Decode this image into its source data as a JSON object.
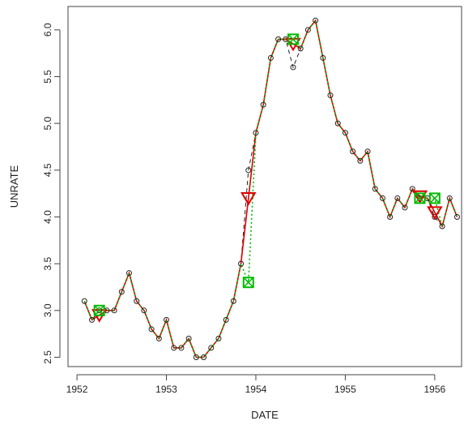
{
  "chart_data": {
    "type": "line",
    "xlabel": "DATE",
    "ylabel": "UNRATE",
    "xlim": [
      1951.9,
      1956.3
    ],
    "ylim": [
      2.4,
      6.25
    ],
    "x_ticks": [
      1952,
      1953,
      1954,
      1955,
      1956
    ],
    "y_ticks": [
      2.5,
      3.0,
      3.5,
      4.0,
      4.5,
      5.0,
      5.5,
      6.0
    ],
    "x_tick_labels": [
      "1952",
      "1953",
      "1954",
      "1955",
      "1956"
    ],
    "y_tick_labels": [
      "2.5",
      "3.0",
      "3.5",
      "4.0",
      "4.5",
      "5.0",
      "5.5",
      "6.0"
    ],
    "grid": false,
    "colors": {
      "observed": "#222222",
      "series_red": "#dd0000",
      "series_green": "#00bb00",
      "series_brown": "#8b5a2b"
    },
    "observed": {
      "x": [
        1952.0833,
        1952.1667,
        1952.25,
        1952.3333,
        1952.4167,
        1952.5,
        1952.5833,
        1952.6667,
        1952.75,
        1952.8333,
        1952.9167,
        1953.0,
        1953.0833,
        1953.1667,
        1953.25,
        1953.3333,
        1953.4167,
        1953.5,
        1953.5833,
        1953.6667,
        1953.75,
        1953.8333,
        1953.9167,
        1954.0,
        1954.0833,
        1954.1667,
        1954.25,
        1954.3333,
        1954.4167,
        1954.5,
        1954.5833,
        1954.6667,
        1954.75,
        1954.8333,
        1954.9167,
        1955.0,
        1955.0833,
        1955.1667,
        1955.25,
        1955.3333,
        1955.4167,
        1955.5,
        1955.5833,
        1955.6667,
        1955.75,
        1955.8333,
        1955.9167,
        1956.0,
        1956.0833,
        1956.1667,
        1956.25
      ],
      "y": [
        3.1,
        2.9,
        3.0,
        3.0,
        3.0,
        3.2,
        3.4,
        3.1,
        3.0,
        2.8,
        2.7,
        2.9,
        2.6,
        2.6,
        2.7,
        2.5,
        2.5,
        2.6,
        2.7,
        2.9,
        3.1,
        3.5,
        4.5,
        4.9,
        5.2,
        5.7,
        5.9,
        5.9,
        5.6,
        5.8,
        6.0,
        6.1,
        5.7,
        5.3,
        5.0,
        4.9,
        4.7,
        4.6,
        4.7,
        4.3,
        4.2,
        4.0,
        4.2,
        4.1,
        4.3,
        4.2,
        4.2,
        4.0,
        3.9,
        4.2,
        4.0
      ]
    },
    "series": [
      {
        "color": "#dd0000",
        "marker": "triangle-down",
        "dash": "solid",
        "x": [
          1952.0833,
          1952.1667,
          1952.25,
          1952.3333,
          1952.4167,
          1952.5,
          1952.5833,
          1952.6667,
          1952.75,
          1952.8333,
          1952.9167,
          1953.0,
          1953.0833,
          1953.1667,
          1953.25,
          1953.3333,
          1953.4167,
          1953.5,
          1953.5833,
          1953.6667,
          1953.75,
          1953.8333,
          1953.9167,
          1954.0,
          1954.0833,
          1954.1667,
          1954.25,
          1954.3333,
          1954.4167,
          1954.5,
          1954.5833,
          1954.6667,
          1954.75,
          1954.8333,
          1954.9167,
          1955.0,
          1955.0833,
          1955.1667,
          1955.25,
          1955.3333,
          1955.4167,
          1955.5,
          1955.5833,
          1955.6667,
          1955.75,
          1955.8333,
          1955.9167,
          1956.0,
          1956.0833,
          1956.1667,
          1956.25
        ],
        "y": [
          3.1,
          2.9,
          2.95,
          3.0,
          3.0,
          3.2,
          3.4,
          3.1,
          3.0,
          2.8,
          2.7,
          2.9,
          2.6,
          2.6,
          2.7,
          2.5,
          2.5,
          2.6,
          2.7,
          2.9,
          3.1,
          3.5,
          4.2,
          4.9,
          5.2,
          5.7,
          5.9,
          5.9,
          5.85,
          5.8,
          6.0,
          6.1,
          5.7,
          5.3,
          5.0,
          4.9,
          4.7,
          4.6,
          4.7,
          4.3,
          4.2,
          4.0,
          4.2,
          4.1,
          4.3,
          4.22,
          4.2,
          4.05,
          3.9,
          4.2,
          4.0
        ],
        "marked_points": [
          [
            1952.25,
            2.95
          ],
          [
            1953.9167,
            4.2
          ],
          [
            1954.4167,
            5.85
          ],
          [
            1955.8333,
            4.22
          ],
          [
            1956.0,
            4.05
          ]
        ]
      },
      {
        "color": "#00bb00",
        "marker": "boxed-x",
        "dash": "dotted",
        "x": [
          1952.0833,
          1952.1667,
          1952.25,
          1952.3333,
          1952.4167,
          1952.5,
          1952.5833,
          1952.6667,
          1952.75,
          1952.8333,
          1952.9167,
          1953.0,
          1953.0833,
          1953.1667,
          1953.25,
          1953.3333,
          1953.4167,
          1953.5,
          1953.5833,
          1953.6667,
          1953.75,
          1953.8333,
          1953.9167,
          1954.0,
          1954.0833,
          1954.1667,
          1954.25,
          1954.3333,
          1954.4167,
          1954.5,
          1954.5833,
          1954.6667,
          1954.75,
          1954.8333,
          1954.9167,
          1955.0,
          1955.0833,
          1955.1667,
          1955.25,
          1955.3333,
          1955.4167,
          1955.5,
          1955.5833,
          1955.6667,
          1955.75,
          1955.8333,
          1955.9167,
          1956.0,
          1956.0833,
          1956.1667,
          1956.25
        ],
        "y": [
          3.1,
          2.9,
          3.0,
          3.0,
          3.0,
          3.2,
          3.4,
          3.1,
          3.0,
          2.8,
          2.7,
          2.9,
          2.6,
          2.6,
          2.7,
          2.5,
          2.5,
          2.6,
          2.7,
          2.9,
          3.1,
          3.5,
          3.3,
          4.9,
          5.2,
          5.7,
          5.9,
          5.9,
          5.9,
          5.8,
          6.0,
          6.1,
          5.7,
          5.3,
          5.0,
          4.9,
          4.7,
          4.6,
          4.7,
          4.3,
          4.2,
          4.0,
          4.2,
          4.1,
          4.3,
          4.2,
          4.2,
          4.2,
          3.9,
          4.2,
          4.0
        ],
        "marked_points": [
          [
            1952.25,
            3.0
          ],
          [
            1953.9167,
            3.3
          ],
          [
            1954.4167,
            5.9
          ],
          [
            1955.8333,
            4.2
          ],
          [
            1956.0,
            4.2
          ]
        ]
      }
    ]
  }
}
